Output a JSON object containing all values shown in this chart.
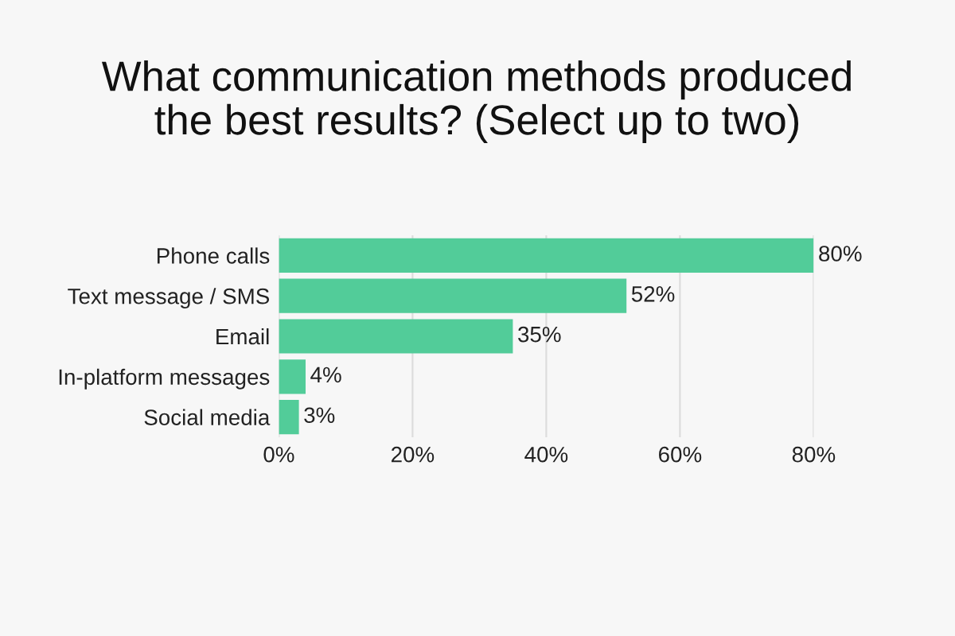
{
  "chart_data": {
    "type": "bar",
    "orientation": "horizontal",
    "title": "What communication methods produced\nthe best results? (Select up to two)",
    "categories": [
      "Phone calls",
      "Text message / SMS",
      "Email",
      "In-platform messages",
      "Social media"
    ],
    "values": [
      80,
      52,
      35,
      4,
      3
    ],
    "color": "#52cc99",
    "value_labels": [
      "80%",
      "52%",
      "35%",
      "4%",
      "3%"
    ],
    "xlim": [
      0,
      80
    ],
    "xticks": [
      {
        "value": 0,
        "label": "0%"
      },
      {
        "value": 20,
        "label": "20%"
      },
      {
        "value": 40,
        "label": "40%"
      },
      {
        "value": 60,
        "label": "60%"
      },
      {
        "value": 80,
        "label": "80%"
      }
    ],
    "grid": "x"
  }
}
